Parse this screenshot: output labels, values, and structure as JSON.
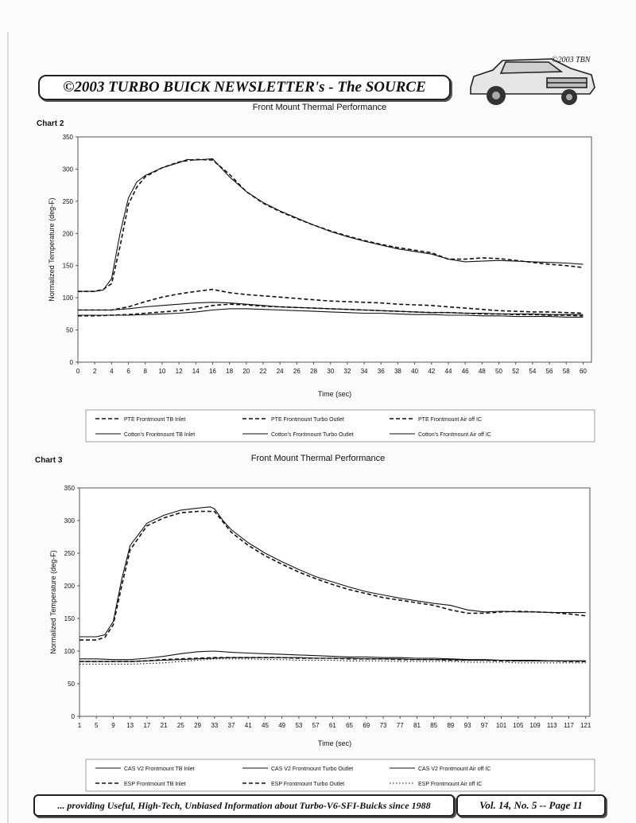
{
  "header": {
    "title": "©2003 TURBO BUICK NEWSLETTER's - The SOURCE",
    "copyright": "©2003 TBN"
  },
  "footer": {
    "tagline": "... providing Useful, High-Tech, Unbiased Information about Turbo-V6-SFI-Buicks since 1988",
    "issue": "Vol. 14, No. 5 -- Page 11"
  },
  "chart_data": [
    {
      "label": "Chart 2",
      "type": "line",
      "title": "Front Mount Thermal Performance",
      "xlabel": "Time (sec)",
      "ylabel": "Normalized Temperature (deg-F)",
      "xlim": [
        0,
        61
      ],
      "ylim": [
        0,
        350
      ],
      "xticks": [
        0,
        2,
        4,
        6,
        8,
        10,
        12,
        14,
        16,
        18,
        20,
        22,
        24,
        26,
        28,
        30,
        32,
        34,
        36,
        38,
        40,
        42,
        44,
        46,
        48,
        50,
        52,
        54,
        56,
        58,
        60
      ],
      "yticks": [
        0,
        50,
        100,
        150,
        200,
        250,
        300,
        350
      ],
      "legend_position": "bottom",
      "series": [
        {
          "name": "PTE Frontmount TB Inlet",
          "style": "dashed",
          "x": [
            0,
            2,
            4,
            6,
            8,
            10,
            12,
            14,
            16,
            18,
            20,
            22,
            24,
            26,
            28,
            30,
            32,
            34,
            36,
            38,
            40,
            42,
            44,
            46,
            48,
            50,
            52,
            54,
            56,
            58,
            60
          ],
          "y": [
            72,
            72,
            73,
            74,
            76,
            78,
            80,
            83,
            88,
            90,
            89,
            87,
            86,
            85,
            84,
            83,
            82,
            81,
            80,
            79,
            78,
            77,
            77,
            76,
            75,
            75,
            74,
            74,
            73,
            73,
            72
          ]
        },
        {
          "name": "PTE Frontmount Turbo Outlet",
          "style": "dashed",
          "x": [
            0,
            2,
            3,
            4,
            5,
            6,
            7,
            8,
            10,
            12,
            14,
            16,
            18,
            20,
            22,
            24,
            26,
            28,
            30,
            32,
            34,
            36,
            38,
            40,
            42,
            44,
            46,
            48,
            50,
            52,
            54,
            56,
            58,
            60
          ],
          "y": [
            110,
            110,
            113,
            122,
            180,
            245,
            272,
            288,
            302,
            311,
            315,
            314,
            292,
            265,
            247,
            234,
            223,
            213,
            204,
            196,
            189,
            183,
            178,
            174,
            170,
            160,
            160,
            162,
            161,
            158,
            155,
            152,
            150,
            147
          ]
        },
        {
          "name": "PTE Frontmount Air off IC",
          "style": "dashed",
          "x": [
            0,
            2,
            4,
            6,
            8,
            10,
            12,
            14,
            16,
            18,
            20,
            22,
            24,
            26,
            28,
            30,
            32,
            34,
            36,
            38,
            40,
            42,
            44,
            46,
            48,
            50,
            52,
            54,
            56,
            58,
            60
          ],
          "y": [
            81,
            81,
            81,
            86,
            94,
            101,
            106,
            110,
            113,
            108,
            105,
            103,
            101,
            99,
            97,
            95,
            94,
            93,
            92,
            90,
            89,
            88,
            86,
            84,
            82,
            80,
            79,
            78,
            78,
            77,
            76
          ]
        },
        {
          "name": "Cotton's Frontmount TB Inlet",
          "style": "solid",
          "x": [
            0,
            2,
            4,
            6,
            8,
            10,
            12,
            14,
            16,
            18,
            20,
            22,
            24,
            26,
            28,
            30,
            32,
            34,
            36,
            38,
            40,
            42,
            44,
            46,
            48,
            50,
            52,
            54,
            56,
            58,
            60
          ],
          "y": [
            73,
            73,
            73,
            73,
            74,
            75,
            76,
            78,
            81,
            83,
            83,
            82,
            81,
            80,
            79,
            78,
            77,
            76,
            76,
            75,
            74,
            74,
            73,
            73,
            72,
            72,
            71,
            71,
            71,
            70,
            70
          ]
        },
        {
          "name": "Cotton's Frontmount Turbo Outlet",
          "style": "solid",
          "x": [
            0,
            2,
            3,
            4,
            5,
            6,
            7,
            8,
            10,
            12,
            13,
            14,
            16,
            18,
            20,
            22,
            24,
            26,
            28,
            30,
            32,
            34,
            36,
            38,
            40,
            42,
            44,
            46,
            48,
            50,
            52,
            54,
            56,
            58,
            60
          ],
          "y": [
            110,
            110,
            112,
            130,
            200,
            255,
            280,
            290,
            302,
            310,
            315,
            314,
            316,
            288,
            265,
            248,
            235,
            224,
            213,
            203,
            195,
            188,
            182,
            176,
            172,
            168,
            160,
            156,
            157,
            158,
            157,
            156,
            155,
            154,
            152
          ]
        },
        {
          "name": "Cotton's Frontmount Air off IC",
          "style": "solid",
          "x": [
            0,
            2,
            4,
            6,
            8,
            10,
            12,
            14,
            16,
            18,
            20,
            22,
            24,
            26,
            28,
            30,
            32,
            34,
            36,
            38,
            40,
            42,
            44,
            46,
            48,
            50,
            52,
            54,
            56,
            58,
            60
          ],
          "y": [
            81,
            81,
            81,
            83,
            86,
            88,
            90,
            92,
            93,
            92,
            90,
            88,
            86,
            85,
            84,
            83,
            82,
            81,
            80,
            79,
            78,
            77,
            77,
            76,
            76,
            75,
            75,
            75,
            74,
            74,
            74
          ]
        }
      ]
    },
    {
      "label": "Chart 3",
      "type": "line",
      "title": "Front Mount Thermal Performance",
      "xlabel": "Time (sec)",
      "ylabel": "Normalized Temperature (deg-F)",
      "xlim": [
        1,
        122
      ],
      "ylim": [
        0,
        350
      ],
      "xticks": [
        1,
        5,
        9,
        13,
        17,
        21,
        25,
        29,
        33,
        37,
        41,
        45,
        49,
        53,
        57,
        61,
        65,
        69,
        73,
        77,
        81,
        85,
        89,
        93,
        97,
        101,
        105,
        109,
        113,
        117,
        121
      ],
      "yticks": [
        0,
        50,
        100,
        150,
        200,
        250,
        300,
        350
      ],
      "legend_position": "bottom",
      "series": [
        {
          "name": "CAS V2 Frontmount TB Inlet",
          "style": "solid",
          "x": [
            1,
            5,
            9,
            13,
            17,
            21,
            25,
            29,
            33,
            37,
            41,
            45,
            49,
            53,
            57,
            61,
            65,
            69,
            73,
            77,
            81,
            85,
            89,
            93,
            97,
            101,
            105,
            109,
            113,
            117,
            121
          ],
          "y": [
            84,
            84,
            84,
            84,
            85,
            86,
            87,
            88,
            89,
            90,
            90,
            90,
            90,
            90,
            89,
            89,
            89,
            88,
            88,
            88,
            87,
            87,
            87,
            86,
            86,
            86,
            85,
            85,
            85,
            85,
            85
          ]
        },
        {
          "name": "CAS V2 Frontmount Turbo Outlet",
          "style": "solid",
          "x": [
            1,
            5,
            7,
            9,
            11,
            13,
            17,
            21,
            25,
            29,
            32,
            33,
            35,
            37,
            41,
            45,
            49,
            53,
            57,
            61,
            65,
            69,
            73,
            77,
            81,
            85,
            89,
            93,
            97,
            101,
            105,
            109,
            113,
            117,
            121
          ],
          "y": [
            122,
            122,
            125,
            145,
            210,
            262,
            296,
            308,
            316,
            319,
            321,
            318,
            300,
            286,
            266,
            250,
            237,
            225,
            214,
            206,
            198,
            191,
            186,
            181,
            177,
            173,
            170,
            163,
            160,
            161,
            160,
            160,
            159,
            159,
            159
          ]
        },
        {
          "name": "CAS V2 Frontmount Air off IC",
          "style": "solid",
          "x": [
            1,
            5,
            9,
            13,
            17,
            21,
            25,
            29,
            33,
            37,
            41,
            45,
            49,
            53,
            57,
            61,
            65,
            69,
            73,
            77,
            81,
            85,
            89,
            93,
            97,
            101,
            105,
            109,
            113,
            117,
            121
          ],
          "y": [
            88,
            88,
            87,
            87,
            89,
            92,
            96,
            99,
            100,
            98,
            97,
            96,
            95,
            94,
            93,
            92,
            91,
            91,
            90,
            90,
            89,
            89,
            88,
            87,
            87,
            86,
            86,
            86,
            85,
            85,
            85
          ]
        },
        {
          "name": "ESP Frontmount TB Inlet",
          "style": "dashed",
          "x": [
            1,
            5,
            9,
            13,
            17,
            21,
            25,
            29,
            33,
            37,
            41,
            45,
            49,
            53,
            57,
            61,
            65,
            69,
            73,
            77,
            81,
            85,
            89,
            93,
            97,
            101,
            105,
            109,
            113,
            117,
            121
          ],
          "y": [
            84,
            84,
            84,
            84,
            85,
            87,
            88,
            89,
            90,
            90,
            90,
            90,
            90,
            89,
            89,
            89,
            88,
            88,
            88,
            87,
            87,
            87,
            86,
            86,
            86,
            85,
            85,
            85,
            85,
            84,
            84
          ]
        },
        {
          "name": "ESP Frontmount Turbo Outlet",
          "style": "dashed",
          "x": [
            1,
            5,
            7,
            9,
            11,
            13,
            17,
            21,
            25,
            29,
            33,
            35,
            37,
            41,
            45,
            49,
            53,
            57,
            61,
            65,
            69,
            73,
            77,
            81,
            85,
            89,
            93,
            97,
            101,
            105,
            109,
            113,
            117,
            121
          ],
          "y": [
            117,
            117,
            121,
            140,
            200,
            255,
            292,
            304,
            312,
            314,
            314,
            298,
            282,
            262,
            246,
            233,
            221,
            211,
            202,
            194,
            188,
            182,
            178,
            174,
            170,
            163,
            158,
            158,
            160,
            161,
            160,
            159,
            157,
            154
          ]
        },
        {
          "name": "ESP Frontmount Air off IC",
          "style": "dotted",
          "x": [
            1,
            5,
            9,
            13,
            17,
            21,
            25,
            29,
            33,
            37,
            41,
            45,
            49,
            53,
            57,
            61,
            65,
            69,
            73,
            77,
            81,
            85,
            89,
            93,
            97,
            101,
            105,
            109,
            113,
            117,
            121
          ],
          "y": [
            80,
            80,
            80,
            80,
            81,
            82,
            84,
            86,
            88,
            88,
            88,
            87,
            87,
            86,
            86,
            86,
            85,
            85,
            85,
            84,
            84,
            84,
            84,
            83,
            83,
            83,
            82,
            82,
            82,
            82,
            82
          ]
        }
      ]
    }
  ]
}
